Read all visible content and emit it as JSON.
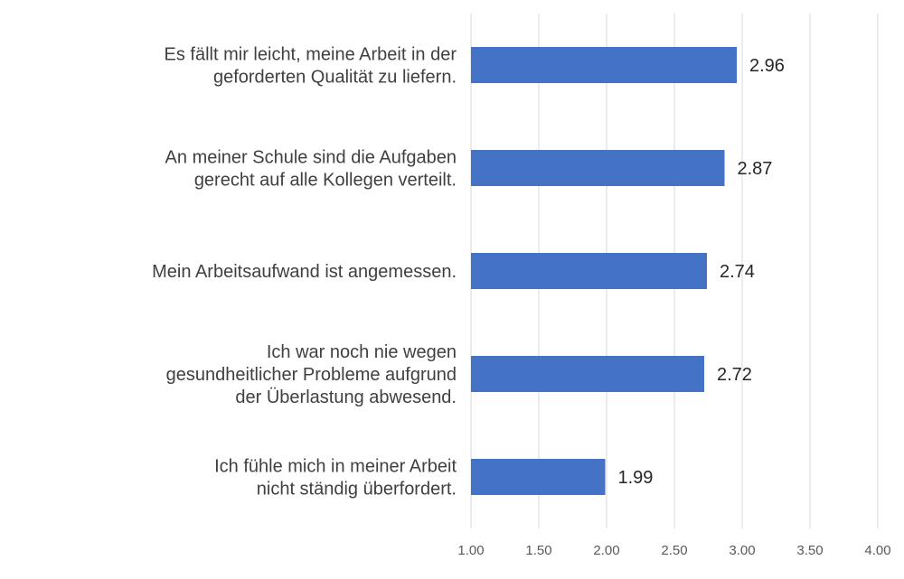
{
  "chart_data": {
    "type": "bar",
    "orientation": "horizontal",
    "title": "",
    "xlabel": "",
    "ylabel": "",
    "categories": [
      [
        "Es fällt mir leicht, meine Arbeit in der",
        "geforderten Qualität zu liefern."
      ],
      [
        "An meiner Schule sind die Aufgaben",
        "gerecht auf alle Kollegen verteilt."
      ],
      [
        "Mein Arbeitsaufwand ist angemessen."
      ],
      [
        "Ich war noch nie wegen",
        "gesundheitlicher Probleme aufgrund",
        "der Überlastung  abwesend."
      ],
      [
        "Ich fühle mich in meiner Arbeit",
        "nicht ständig überfordert."
      ]
    ],
    "values": [
      2.96,
      2.87,
      2.74,
      2.72,
      1.99
    ],
    "data_labels": [
      "2.96",
      "2.87",
      "2.74",
      "2.72",
      "1.99"
    ],
    "xlim": [
      1.0,
      4.0
    ],
    "ticks": [
      1.0,
      1.5,
      2.0,
      2.5,
      3.0,
      3.5,
      4.0
    ],
    "tick_labels": [
      "1.00",
      "1.50",
      "2.00",
      "2.50",
      "3.00",
      "3.50",
      "4.00"
    ],
    "grid": true,
    "legend": "none",
    "bar_color": "#4472C4",
    "grid_color": "#D9D9D9"
  }
}
